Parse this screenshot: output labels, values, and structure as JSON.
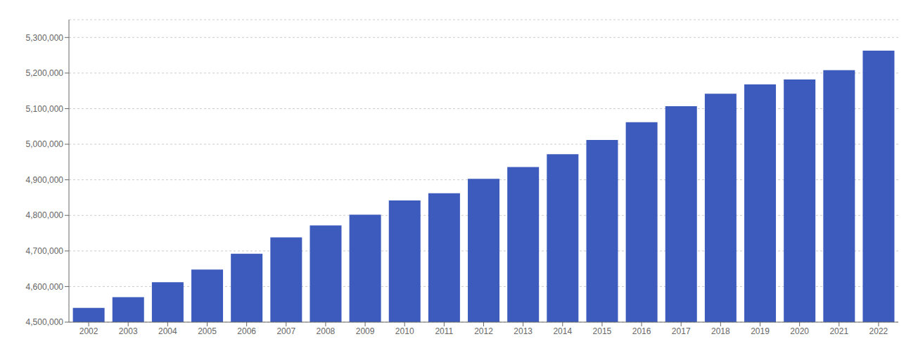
{
  "chart_data": {
    "type": "bar",
    "categories": [
      "2002",
      "2003",
      "2004",
      "2005",
      "2006",
      "2007",
      "2008",
      "2009",
      "2010",
      "2011",
      "2012",
      "2013",
      "2014",
      "2015",
      "2016",
      "2017",
      "2018",
      "2019",
      "2020",
      "2021",
      "2022"
    ],
    "values": [
      4540000,
      4570000,
      4612000,
      4648000,
      4692000,
      4738000,
      4772000,
      4802000,
      4842000,
      4862000,
      4903000,
      4936000,
      4972000,
      5012000,
      5062000,
      5107000,
      5142000,
      5168000,
      5182000,
      5208000,
      5263000
    ],
    "color": "#3C5BBD",
    "ylim": [
      4500000,
      5350000
    ],
    "yticks": [
      {
        "value": 4500000,
        "label": "4,500,000"
      },
      {
        "value": 4600000,
        "label": "4,600,000"
      },
      {
        "value": 4700000,
        "label": "4,700,000"
      },
      {
        "value": 4800000,
        "label": "4,800,000"
      },
      {
        "value": 4900000,
        "label": "4,900,000"
      },
      {
        "value": 5000000,
        "label": "5,000,000"
      },
      {
        "value": 5100000,
        "label": "5,100,000"
      },
      {
        "value": 5200000,
        "label": "5,200,000"
      },
      {
        "value": 5300000,
        "label": "5,300,000"
      }
    ],
    "grid": true
  }
}
